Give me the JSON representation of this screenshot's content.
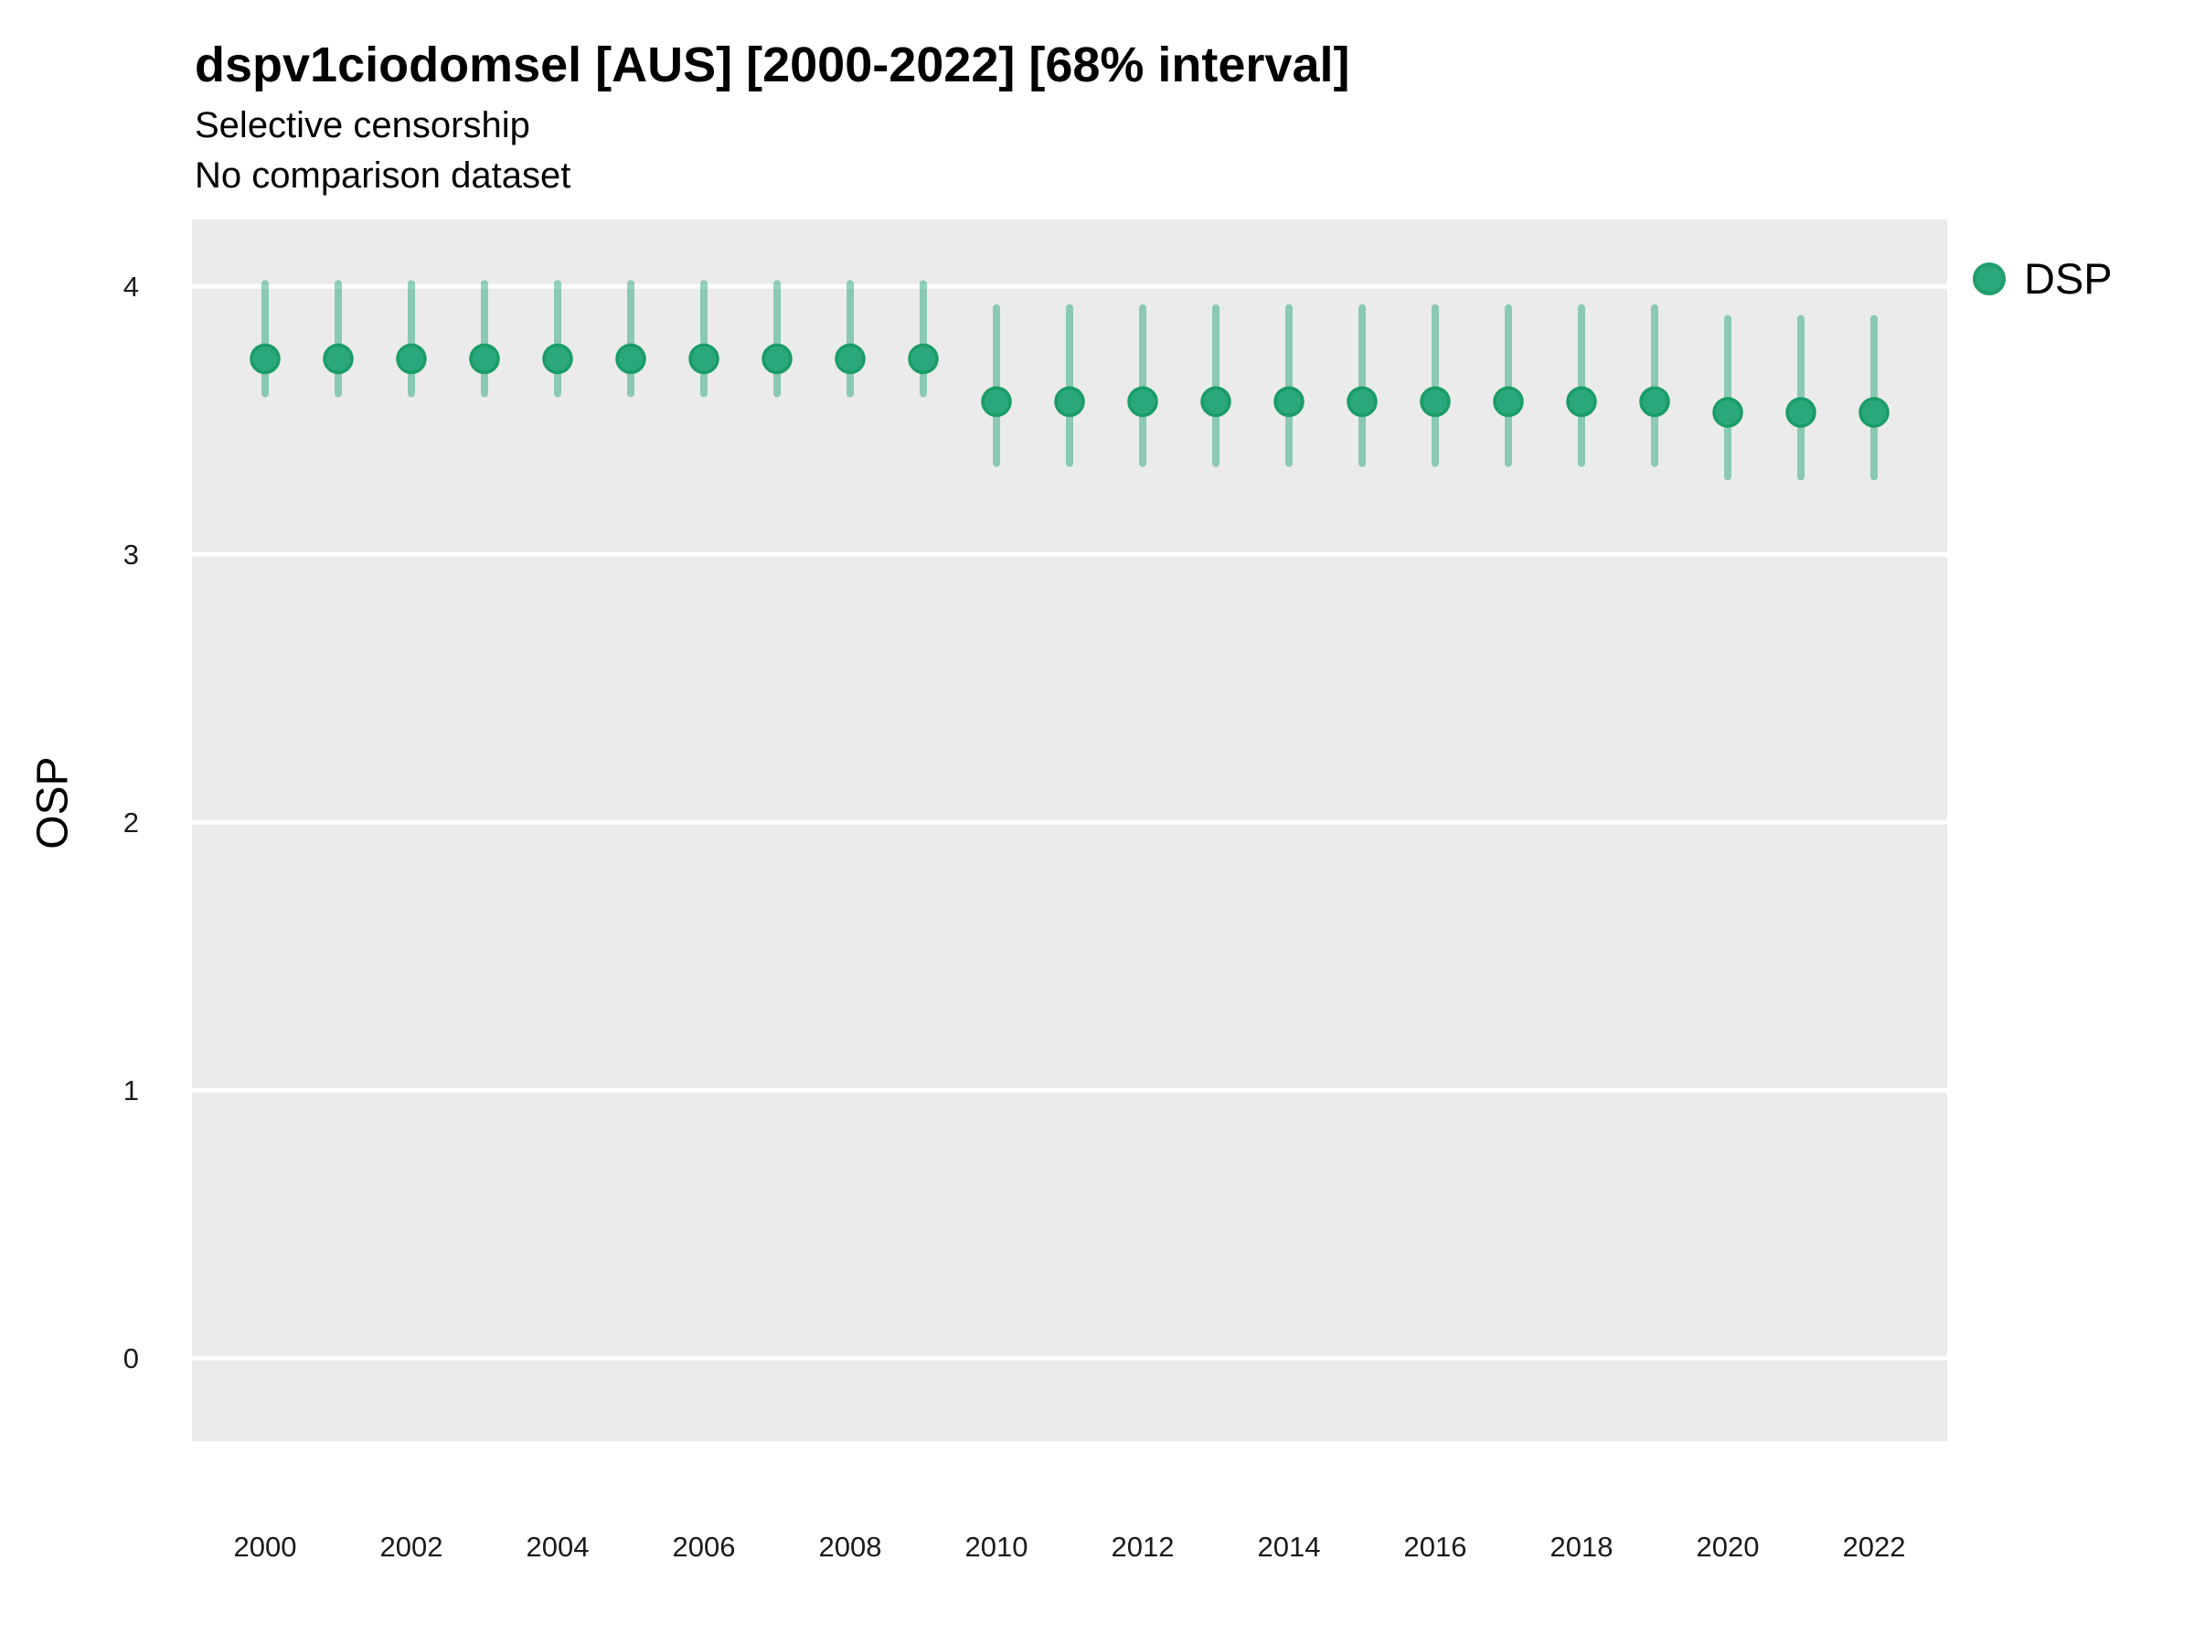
{
  "header": {
    "title": "dspv1ciodomsel [AUS] [2000-2022] [68% interval]",
    "subtitle1": "Selective censorship",
    "subtitle2": "No comparison dataset"
  },
  "axes": {
    "y_label": "OSP"
  },
  "legend": {
    "items": [
      {
        "label": "DSP",
        "color": "#2aa87b"
      }
    ]
  },
  "chart_data": {
    "type": "pointrange",
    "title": "dspv1ciodomsel [AUS] [2000-2022] [68% interval]",
    "subtitle": [
      "Selective censorship",
      "No comparison dataset"
    ],
    "interval_level": "68%",
    "xlabel": "",
    "ylabel": "OSP",
    "grid": "horizontal-major-only",
    "legend_position": "right",
    "panel_bg": "#ebebeb",
    "gridline_color": "#ffffff",
    "xlim": [
      1999,
      2023
    ],
    "ylim": [
      -0.31,
      4.25
    ],
    "yticks": [
      0,
      1,
      2,
      3,
      4
    ],
    "xticks": [
      2000,
      2002,
      2004,
      2006,
      2008,
      2010,
      2012,
      2014,
      2016,
      2018,
      2020,
      2022
    ],
    "series": [
      {
        "name": "DSP",
        "point_color": "#2aa87b",
        "point_stroke": "#1a9c68",
        "bar_color": "rgba(42,168,123,0.5)",
        "points": [
          {
            "year": 2000,
            "mean": 3.73,
            "lower": 3.6,
            "upper": 4.01
          },
          {
            "year": 2001,
            "mean": 3.73,
            "lower": 3.6,
            "upper": 4.01
          },
          {
            "year": 2002,
            "mean": 3.73,
            "lower": 3.6,
            "upper": 4.01
          },
          {
            "year": 2003,
            "mean": 3.73,
            "lower": 3.6,
            "upper": 4.01
          },
          {
            "year": 2004,
            "mean": 3.73,
            "lower": 3.6,
            "upper": 4.01
          },
          {
            "year": 2005,
            "mean": 3.73,
            "lower": 3.6,
            "upper": 4.01
          },
          {
            "year": 2006,
            "mean": 3.73,
            "lower": 3.6,
            "upper": 4.01
          },
          {
            "year": 2007,
            "mean": 3.73,
            "lower": 3.6,
            "upper": 4.01
          },
          {
            "year": 2008,
            "mean": 3.73,
            "lower": 3.6,
            "upper": 4.01
          },
          {
            "year": 2009,
            "mean": 3.73,
            "lower": 3.6,
            "upper": 4.01
          },
          {
            "year": 2010,
            "mean": 3.57,
            "lower": 3.34,
            "upper": 3.92
          },
          {
            "year": 2011,
            "mean": 3.57,
            "lower": 3.34,
            "upper": 3.92
          },
          {
            "year": 2012,
            "mean": 3.57,
            "lower": 3.34,
            "upper": 3.92
          },
          {
            "year": 2013,
            "mean": 3.57,
            "lower": 3.34,
            "upper": 3.92
          },
          {
            "year": 2014,
            "mean": 3.57,
            "lower": 3.34,
            "upper": 3.92
          },
          {
            "year": 2015,
            "mean": 3.57,
            "lower": 3.34,
            "upper": 3.92
          },
          {
            "year": 2016,
            "mean": 3.57,
            "lower": 3.34,
            "upper": 3.92
          },
          {
            "year": 2017,
            "mean": 3.57,
            "lower": 3.34,
            "upper": 3.92
          },
          {
            "year": 2018,
            "mean": 3.57,
            "lower": 3.34,
            "upper": 3.92
          },
          {
            "year": 2019,
            "mean": 3.57,
            "lower": 3.34,
            "upper": 3.92
          },
          {
            "year": 2020,
            "mean": 3.53,
            "lower": 3.29,
            "upper": 3.88
          },
          {
            "year": 2021,
            "mean": 3.53,
            "lower": 3.29,
            "upper": 3.88
          },
          {
            "year": 2022,
            "mean": 3.53,
            "lower": 3.29,
            "upper": 3.88
          }
        ]
      }
    ]
  }
}
